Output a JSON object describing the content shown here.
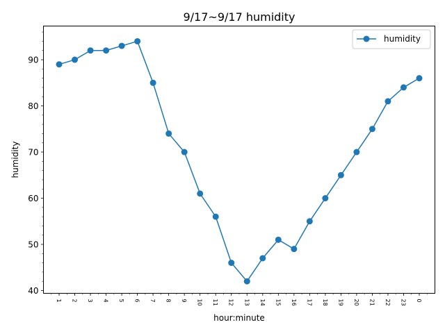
{
  "chart_data": {
    "type": "line",
    "title": "9/17~9/17 humidity",
    "xlabel": "hour:minute",
    "ylabel": "humidity",
    "categories": [
      "1",
      "2",
      "3",
      "4",
      "5",
      "6",
      "7",
      "8",
      "9",
      "10",
      "11",
      "12",
      "13",
      "14",
      "15",
      "16",
      "17",
      "18",
      "19",
      "20",
      "21",
      "22",
      "23",
      "0"
    ],
    "series": [
      {
        "name": "humidity",
        "color": "#1f77b4",
        "marker": "circle",
        "values": [
          89,
          90,
          92,
          92,
          93,
          94,
          85,
          74,
          70,
          61,
          56,
          46,
          42,
          47,
          51,
          49,
          55,
          60,
          65,
          70,
          75,
          81,
          84,
          86
        ]
      }
    ],
    "ylim": [
      39.4,
      97.3
    ],
    "yticks": [
      40,
      50,
      60,
      70,
      80,
      90
    ],
    "yminor_step": 2,
    "xminor_slots": 50,
    "grid": false,
    "legend_position": "upper right"
  }
}
